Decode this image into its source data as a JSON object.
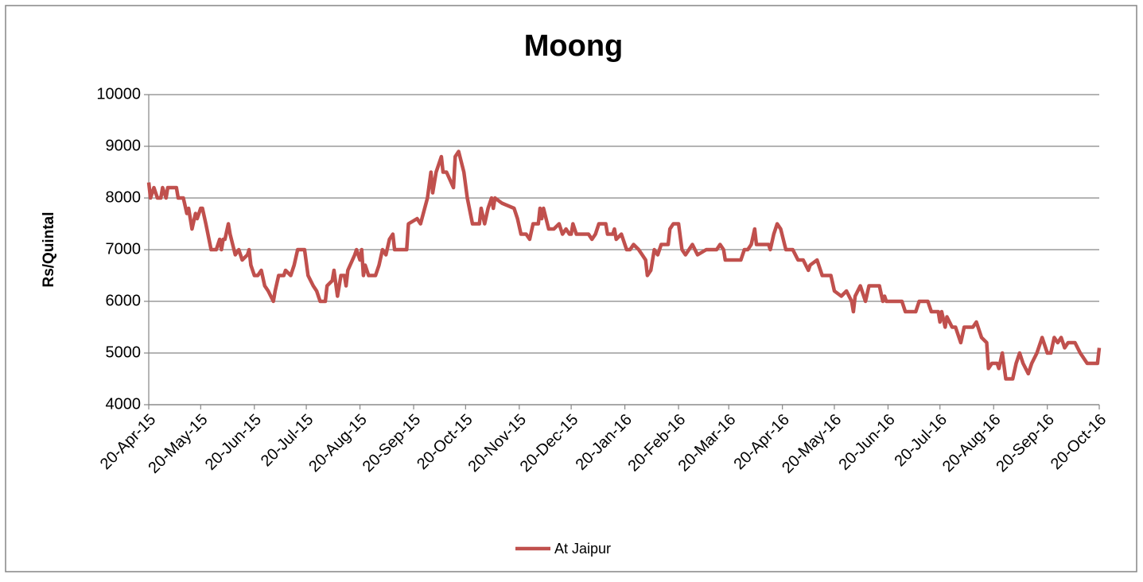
{
  "chart_data": {
    "type": "line",
    "title": "Moong",
    "ylabel": "Rs/Quintal",
    "ylim": [
      4000,
      10000
    ],
    "yticks": [
      4000,
      5000,
      6000,
      7000,
      8000,
      9000,
      10000
    ],
    "grid": true,
    "xlim": [
      "2015-04-20",
      "2016-10-20"
    ],
    "xticks": [
      {
        "value": "2015-04-20",
        "label": "20-Apr-15"
      },
      {
        "value": "2015-05-20",
        "label": "20-May-15"
      },
      {
        "value": "2015-06-20",
        "label": "20-Jun-15"
      },
      {
        "value": "2015-07-20",
        "label": "20-Jul-15"
      },
      {
        "value": "2015-08-20",
        "label": "20-Aug-15"
      },
      {
        "value": "2015-09-20",
        "label": "20-Sep-15"
      },
      {
        "value": "2015-10-20",
        "label": "20-Oct-15"
      },
      {
        "value": "2015-11-20",
        "label": "20-Nov-15"
      },
      {
        "value": "2015-12-20",
        "label": "20-Dec-15"
      },
      {
        "value": "2016-01-20",
        "label": "20-Jan-16"
      },
      {
        "value": "2016-02-20",
        "label": "20-Feb-16"
      },
      {
        "value": "2016-03-20",
        "label": "20-Mar-16"
      },
      {
        "value": "2016-04-20",
        "label": "20-Apr-16"
      },
      {
        "value": "2016-05-20",
        "label": "20-May-16"
      },
      {
        "value": "2016-06-20",
        "label": "20-Jun-16"
      },
      {
        "value": "2016-07-20",
        "label": "20-Jul-16"
      },
      {
        "value": "2016-08-20",
        "label": "20-Aug-16"
      },
      {
        "value": "2016-09-20",
        "label": "20-Sep-16"
      },
      {
        "value": "2016-10-20",
        "label": "20-Oct-16"
      }
    ],
    "legend": "bottom",
    "x": [
      "2015-04-20",
      "2015-04-21",
      "2015-04-23",
      "2015-04-25",
      "2015-04-27",
      "2015-04-28",
      "2015-04-30",
      "2015-05-01",
      "2015-05-06",
      "2015-05-07",
      "2015-05-10",
      "2015-05-12",
      "2015-05-13",
      "2015-05-15",
      "2015-05-17",
      "2015-05-18",
      "2015-05-20",
      "2015-05-21",
      "2015-05-23",
      "2015-05-26",
      "2015-05-29",
      "2015-05-31",
      "2015-06-01",
      "2015-06-02",
      "2015-06-03",
      "2015-06-05",
      "2015-06-06",
      "2015-06-09",
      "2015-06-11",
      "2015-06-13",
      "2015-06-16",
      "2015-06-17",
      "2015-06-18",
      "2015-06-20",
      "2015-06-22",
      "2015-06-24",
      "2015-06-26",
      "2015-06-28",
      "2015-07-01",
      "2015-07-02",
      "2015-07-04",
      "2015-07-07",
      "2015-07-08",
      "2015-07-11",
      "2015-07-13",
      "2015-07-15",
      "2015-07-19",
      "2015-07-21",
      "2015-07-24",
      "2015-07-26",
      "2015-07-28",
      "2015-07-31",
      "2015-08-01",
      "2015-08-04",
      "2015-08-05",
      "2015-08-07",
      "2015-08-09",
      "2015-08-11",
      "2015-08-12",
      "2015-08-13",
      "2015-08-17",
      "2015-08-18",
      "2015-08-20",
      "2015-08-21",
      "2015-08-22",
      "2015-08-23",
      "2015-08-25",
      "2015-08-29",
      "2015-08-31",
      "2015-09-02",
      "2015-09-04",
      "2015-09-06",
      "2015-09-08",
      "2015-09-09",
      "2015-09-16",
      "2015-09-17",
      "2015-09-22",
      "2015-09-24",
      "2015-09-28",
      "2015-09-30",
      "2015-10-01",
      "2015-10-03",
      "2015-10-06",
      "2015-10-07",
      "2015-10-09",
      "2015-10-13",
      "2015-10-14",
      "2015-10-16",
      "2015-10-19",
      "2015-10-21",
      "2015-10-24",
      "2015-10-28",
      "2015-10-29",
      "2015-10-31",
      "2015-11-02",
      "2015-11-04",
      "2015-11-05",
      "2015-11-06",
      "2015-11-10",
      "2015-11-17",
      "2015-11-19",
      "2015-11-21",
      "2015-11-24",
      "2015-11-26",
      "2015-11-28",
      "2015-12-01",
      "2015-12-02",
      "2015-12-03",
      "2015-12-04",
      "2015-12-07",
      "2015-12-10",
      "2015-12-13",
      "2015-12-15",
      "2015-12-17",
      "2015-12-19",
      "2015-12-20",
      "2015-12-21",
      "2015-12-23",
      "2015-12-30",
      "2016-01-01",
      "2016-01-03",
      "2016-01-05",
      "2016-01-09",
      "2016-01-10",
      "2016-01-13",
      "2016-01-14",
      "2016-01-15",
      "2016-01-18",
      "2016-01-21",
      "2016-01-23",
      "2016-01-25",
      "2016-01-28",
      "2016-01-30",
      "2016-02-01",
      "2016-02-02",
      "2016-02-04",
      "2016-02-06",
      "2016-02-08",
      "2016-02-10",
      "2016-02-14",
      "2016-02-15",
      "2016-02-17",
      "2016-02-20",
      "2016-02-22",
      "2016-02-24",
      "2016-02-28",
      "2016-03-02",
      "2016-03-07",
      "2016-03-13",
      "2016-03-15",
      "2016-03-17",
      "2016-03-18",
      "2016-03-27",
      "2016-03-29",
      "2016-03-31",
      "2016-04-02",
      "2016-04-04",
      "2016-04-05",
      "2016-04-12",
      "2016-04-13",
      "2016-04-15",
      "2016-04-17",
      "2016-04-19",
      "2016-04-22",
      "2016-04-26",
      "2016-04-29",
      "2016-05-02",
      "2016-05-05",
      "2016-05-06",
      "2016-05-10",
      "2016-05-13",
      "2016-05-18",
      "2016-05-20",
      "2016-05-24",
      "2016-05-27",
      "2016-05-30",
      "2016-05-31",
      "2016-06-01",
      "2016-06-04",
      "2016-06-07",
      "2016-06-09",
      "2016-06-15",
      "2016-06-17",
      "2016-06-18",
      "2016-06-19",
      "2016-06-28",
      "2016-06-30",
      "2016-07-06",
      "2016-07-08",
      "2016-07-13",
      "2016-07-15",
      "2016-07-19",
      "2016-07-20",
      "2016-07-21",
      "2016-07-23",
      "2016-07-24",
      "2016-07-27",
      "2016-07-29",
      "2016-08-01",
      "2016-08-03",
      "2016-08-08",
      "2016-08-10",
      "2016-08-13",
      "2016-08-16",
      "2016-08-17",
      "2016-08-19",
      "2016-08-22",
      "2016-08-23",
      "2016-08-25",
      "2016-08-27",
      "2016-08-31",
      "2016-09-02",
      "2016-09-04",
      "2016-09-06",
      "2016-09-09",
      "2016-09-11",
      "2016-09-14",
      "2016-09-17",
      "2016-09-20",
      "2016-09-22",
      "2016-09-24",
      "2016-09-26",
      "2016-09-28",
      "2016-09-30",
      "2016-10-02",
      "2016-10-06",
      "2016-10-09",
      "2016-10-13",
      "2016-10-19",
      "2016-10-20"
    ],
    "series": [
      {
        "name": "At Jaipur",
        "color": "#c0504d",
        "values": [
          8300,
          8000,
          8200,
          8000,
          8000,
          8200,
          8000,
          8200,
          8200,
          8000,
          8000,
          7700,
          7800,
          7400,
          7700,
          7600,
          7800,
          7800,
          7500,
          7000,
          7000,
          7200,
          7000,
          7200,
          7200,
          7500,
          7300,
          6900,
          7000,
          6800,
          6900,
          7000,
          6700,
          6500,
          6500,
          6600,
          6300,
          6200,
          6000,
          6200,
          6500,
          6500,
          6600,
          6500,
          6700,
          7000,
          7000,
          6500,
          6300,
          6200,
          6000,
          6000,
          6300,
          6400,
          6600,
          6100,
          6500,
          6500,
          6300,
          6600,
          6900,
          7000,
          6800,
          7000,
          6500,
          6700,
          6500,
          6500,
          6700,
          7000,
          6900,
          7200,
          7300,
          7000,
          7000,
          7500,
          7600,
          7500,
          8000,
          8500,
          8100,
          8500,
          8800,
          8500,
          8500,
          8200,
          8800,
          8900,
          8500,
          8000,
          7500,
          7500,
          7800,
          7500,
          7800,
          8000,
          7800,
          8000,
          7900,
          7800,
          7600,
          7300,
          7300,
          7200,
          7500,
          7500,
          7800,
          7600,
          7800,
          7400,
          7400,
          7500,
          7300,
          7400,
          7300,
          7300,
          7500,
          7300,
          7300,
          7200,
          7300,
          7500,
          7500,
          7300,
          7300,
          7400,
          7200,
          7300,
          7000,
          7000,
          7100,
          7000,
          6900,
          6800,
          6500,
          6600,
          7000,
          6900,
          7100,
          7100,
          7400,
          7500,
          7500,
          7000,
          6900,
          7100,
          6900,
          7000,
          7000,
          7100,
          7000,
          6800,
          6800,
          7000,
          7000,
          7100,
          7400,
          7100,
          7100,
          7000,
          7300,
          7500,
          7400,
          7000,
          7000,
          6800,
          6800,
          6600,
          6700,
          6800,
          6500,
          6500,
          6200,
          6100,
          6200,
          6000,
          5800,
          6100,
          6300,
          6000,
          6300,
          6300,
          6000,
          6100,
          6000,
          6000,
          5800,
          5800,
          6000,
          6000,
          5800,
          5800,
          5600,
          5800,
          5500,
          5700,
          5500,
          5500,
          5200,
          5500,
          5500,
          5600,
          5300,
          5200,
          4700,
          4800,
          4800,
          4700,
          5000,
          4500,
          4500,
          4800,
          5000,
          4800,
          4600,
          4800,
          5000,
          5300,
          5000,
          5000,
          5300,
          5200,
          5300,
          5100,
          5200,
          5200,
          5000,
          4800,
          4800,
          5100
        ]
      }
    ]
  }
}
